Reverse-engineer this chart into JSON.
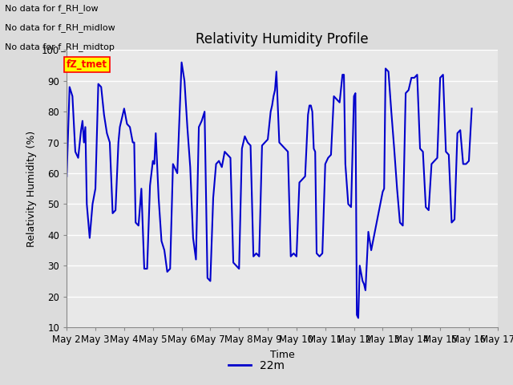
{
  "title": "Relativity Humidity Profile",
  "ylabel": "Relativity Humidity (%)",
  "xlabel": "Time",
  "legend_label": "22m",
  "legend_color": "#0000cc",
  "no_data_texts": [
    "No data for f_RH_low",
    "No data for f_RH_midlow",
    "No data for f_RH_midtop"
  ],
  "tz_tmet_label": "fZ_tmet",
  "ylim": [
    10,
    100
  ],
  "yticks": [
    10,
    20,
    30,
    40,
    50,
    60,
    70,
    80,
    90,
    100
  ],
  "line_color": "#0000cc",
  "background_color": "#dcdcdc",
  "plot_bg_color": "#e8e8e8",
  "grid_color": "#ffffff",
  "x_start_day": 2,
  "x_end_day": 17,
  "x_tick_days": [
    2,
    3,
    4,
    5,
    6,
    7,
    8,
    9,
    10,
    11,
    12,
    13,
    14,
    15,
    16,
    17
  ],
  "x_tick_labels": [
    "May 2",
    "May 3",
    "May 4",
    "May 5",
    "May 6",
    "May 7",
    "May 8",
    "May 9",
    "May 10",
    "May 11",
    "May 12",
    "May 13",
    "May 14",
    "May 15",
    "May 16",
    "May 17"
  ],
  "rh_data": [
    [
      2.0,
      59
    ],
    [
      2.1,
      88
    ],
    [
      2.2,
      85
    ],
    [
      2.3,
      67
    ],
    [
      2.4,
      65
    ],
    [
      2.5,
      74
    ],
    [
      2.55,
      77
    ],
    [
      2.6,
      70
    ],
    [
      2.65,
      75
    ],
    [
      2.7,
      50
    ],
    [
      2.8,
      39
    ],
    [
      2.9,
      50
    ],
    [
      3.0,
      55
    ],
    [
      3.1,
      89
    ],
    [
      3.2,
      88
    ],
    [
      3.3,
      79
    ],
    [
      3.4,
      73
    ],
    [
      3.5,
      70
    ],
    [
      3.6,
      47
    ],
    [
      3.7,
      48
    ],
    [
      3.8,
      70
    ],
    [
      3.85,
      75
    ],
    [
      4.0,
      81
    ],
    [
      4.1,
      76
    ],
    [
      4.2,
      75
    ],
    [
      4.3,
      70
    ],
    [
      4.35,
      70
    ],
    [
      4.4,
      44
    ],
    [
      4.5,
      43
    ],
    [
      4.6,
      55
    ],
    [
      4.7,
      29
    ],
    [
      4.8,
      29
    ],
    [
      4.9,
      56
    ],
    [
      5.0,
      64
    ],
    [
      5.05,
      63
    ],
    [
      5.1,
      73
    ],
    [
      5.2,
      52
    ],
    [
      5.3,
      38
    ],
    [
      5.4,
      35
    ],
    [
      5.5,
      28
    ],
    [
      5.6,
      29
    ],
    [
      5.7,
      63
    ],
    [
      5.75,
      62
    ],
    [
      5.8,
      61
    ],
    [
      5.85,
      60
    ],
    [
      6.0,
      96
    ],
    [
      6.1,
      90
    ],
    [
      6.2,
      75
    ],
    [
      6.3,
      62
    ],
    [
      6.4,
      39
    ],
    [
      6.5,
      32
    ],
    [
      6.6,
      75
    ],
    [
      6.7,
      77
    ],
    [
      6.8,
      80
    ],
    [
      6.9,
      26
    ],
    [
      7.0,
      25
    ],
    [
      7.1,
      52
    ],
    [
      7.2,
      63
    ],
    [
      7.3,
      64
    ],
    [
      7.4,
      62
    ],
    [
      7.5,
      67
    ],
    [
      7.6,
      66
    ],
    [
      7.7,
      65
    ],
    [
      7.8,
      31
    ],
    [
      7.9,
      30
    ],
    [
      8.0,
      29
    ],
    [
      8.1,
      68
    ],
    [
      8.2,
      72
    ],
    [
      8.3,
      70
    ],
    [
      8.4,
      69
    ],
    [
      8.5,
      33
    ],
    [
      8.6,
      34
    ],
    [
      8.7,
      33
    ],
    [
      8.8,
      69
    ],
    [
      8.9,
      70
    ],
    [
      9.0,
      71
    ],
    [
      9.1,
      80
    ],
    [
      9.15,
      82
    ],
    [
      9.2,
      85
    ],
    [
      9.25,
      87
    ],
    [
      9.3,
      93
    ],
    [
      9.4,
      70
    ],
    [
      9.5,
      69
    ],
    [
      9.6,
      68
    ],
    [
      9.7,
      67
    ],
    [
      9.8,
      33
    ],
    [
      9.9,
      34
    ],
    [
      10.0,
      33
    ],
    [
      10.1,
      57
    ],
    [
      10.2,
      58
    ],
    [
      10.3,
      59
    ],
    [
      10.4,
      79
    ],
    [
      10.45,
      82
    ],
    [
      10.5,
      82
    ],
    [
      10.55,
      80
    ],
    [
      10.6,
      68
    ],
    [
      10.65,
      67
    ],
    [
      10.7,
      34
    ],
    [
      10.8,
      33
    ],
    [
      10.9,
      34
    ],
    [
      11.0,
      63
    ],
    [
      11.1,
      65
    ],
    [
      11.2,
      66
    ],
    [
      11.3,
      85
    ],
    [
      11.4,
      84
    ],
    [
      11.5,
      83
    ],
    [
      11.6,
      92
    ],
    [
      11.65,
      92
    ],
    [
      11.7,
      63
    ],
    [
      11.8,
      50
    ],
    [
      11.9,
      49
    ],
    [
      12.0,
      85
    ],
    [
      12.05,
      86
    ],
    [
      12.1,
      14
    ],
    [
      12.15,
      13
    ],
    [
      12.2,
      30
    ],
    [
      12.3,
      25
    ],
    [
      12.35,
      24
    ],
    [
      12.4,
      22
    ],
    [
      12.5,
      41
    ],
    [
      12.6,
      35
    ],
    [
      13.0,
      54
    ],
    [
      13.05,
      55
    ],
    [
      13.1,
      94
    ],
    [
      13.2,
      93
    ],
    [
      13.3,
      80
    ],
    [
      13.4,
      68
    ],
    [
      13.5,
      55
    ],
    [
      13.6,
      44
    ],
    [
      13.7,
      43
    ],
    [
      13.8,
      86
    ],
    [
      13.9,
      87
    ],
    [
      14.0,
      91
    ],
    [
      14.1,
      91
    ],
    [
      14.2,
      92
    ],
    [
      14.3,
      68
    ],
    [
      14.4,
      67
    ],
    [
      14.5,
      49
    ],
    [
      14.6,
      48
    ],
    [
      14.7,
      63
    ],
    [
      14.8,
      64
    ],
    [
      14.9,
      65
    ],
    [
      15.0,
      91
    ],
    [
      15.1,
      92
    ],
    [
      15.2,
      67
    ],
    [
      15.3,
      66
    ],
    [
      15.4,
      44
    ],
    [
      15.5,
      45
    ],
    [
      15.6,
      73
    ],
    [
      15.7,
      74
    ],
    [
      15.8,
      63
    ],
    [
      15.9,
      63
    ],
    [
      16.0,
      64
    ],
    [
      16.1,
      81
    ]
  ]
}
